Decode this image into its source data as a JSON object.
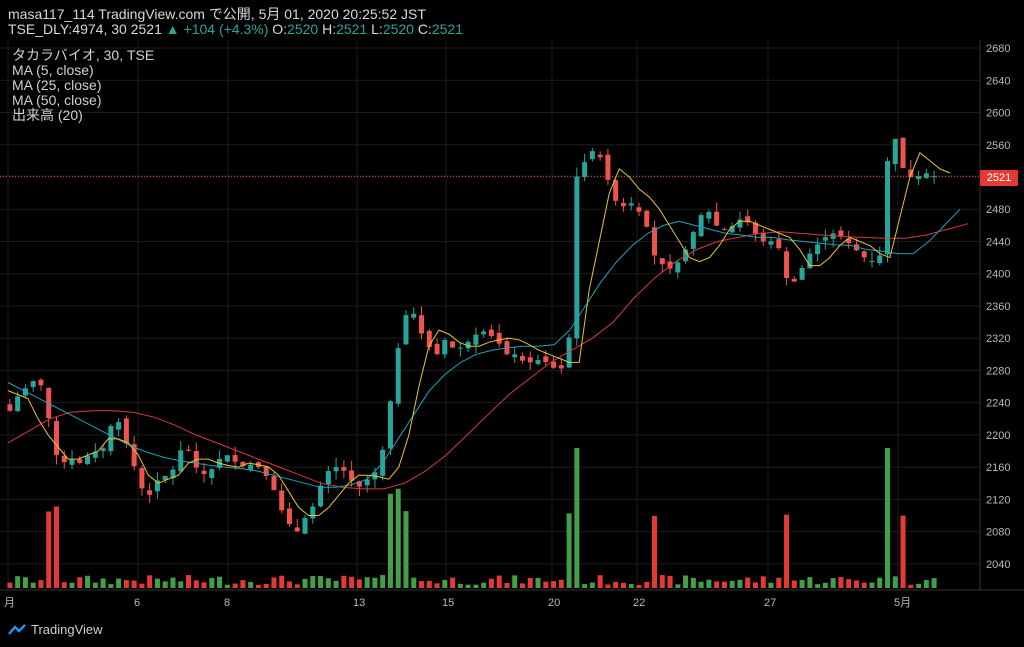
{
  "header": {
    "line1": "masa117_114 TradingView.com で公開, 5月 01, 2020 20:25:52 JST",
    "symbol": "TSE_DLY:4974, 30",
    "last": "2521",
    "change": "+104 (+4.3%)",
    "o_label": "O:",
    "o": "2520",
    "h_label": "H:",
    "h": "2521",
    "l_label": "L:",
    "l": "2520",
    "c_label": "C:",
    "c": "2521"
  },
  "indicators": [
    "タカラバイオ, 30, TSE",
    "MA (5, close)",
    "MA (25, close)",
    "MA (50, close)",
    "出来高 (20)"
  ],
  "price_tag": "2521",
  "brand": "TradingView",
  "colors": {
    "up": "#26a69a",
    "down": "#ef5350",
    "ma5": "#e6c630",
    "ma25": "#1fa2bd",
    "ma50": "#d93a3a",
    "vol_up": "#43a047",
    "vol_down": "#e53935"
  },
  "chart_data": {
    "type": "candlestick",
    "y_ticks": [
      2040,
      2080,
      2120,
      2160,
      2200,
      2240,
      2280,
      2320,
      2360,
      2400,
      2440,
      2480,
      2520,
      2560,
      2600,
      2640,
      2680
    ],
    "ylim": [
      2010,
      2690
    ],
    "x_ticks": [
      "月",
      "6",
      "8",
      "13",
      "15",
      "20",
      "22",
      "27",
      "5月"
    ],
    "last_price": 2521,
    "candle_count": 120,
    "close_path": [
      2230,
      2250,
      2260,
      2270,
      2255,
      2180,
      2165,
      2170,
      2165,
      2175,
      2180,
      2185,
      2230,
      2200,
      2170,
      2135,
      2125,
      2145,
      2150,
      2160,
      2195,
      2165,
      2150,
      2155,
      2170,
      2175,
      2165,
      2160,
      2165,
      2155,
      2140,
      2110,
      2090,
      2080,
      2100,
      2115,
      2150,
      2160,
      2160,
      2145,
      2135,
      2145,
      2155,
      2190,
      2270,
      2340,
      2360,
      2330,
      2310,
      2300,
      2320,
      2305,
      2310,
      2320,
      2330,
      2325,
      2315,
      2300,
      2300,
      2290,
      2290,
      2295,
      2285,
      2280,
      2290,
      2520,
      2540,
      2555,
      2540,
      2500,
      2480,
      2490,
      2480,
      2460,
      2420,
      2410,
      2405,
      2420,
      2440,
      2470,
      2480,
      2460,
      2455,
      2460,
      2470,
      2460,
      2440,
      2440,
      2440,
      2395,
      2390,
      2410,
      2430,
      2440,
      2450,
      2450,
      2440,
      2430,
      2420,
      2415,
      2425,
      2600,
      2540,
      2520,
      2520,
      2525,
      2521
    ],
    "ma5_path": [
      2255,
      2250,
      2245,
      2220,
      2200,
      2185,
      2170,
      2170,
      2175,
      2180,
      2195,
      2195,
      2190,
      2175,
      2150,
      2140,
      2145,
      2150,
      2165,
      2170,
      2170,
      2165,
      2162,
      2160,
      2165,
      2163,
      2160,
      2150,
      2130,
      2110,
      2100,
      2100,
      2110,
      2125,
      2140,
      2150,
      2150,
      2148,
      2145,
      2160,
      2200,
      2260,
      2310,
      2330,
      2325,
      2315,
      2310,
      2310,
      2315,
      2318,
      2320,
      2318,
      2312,
      2305,
      2300,
      2295,
      2290,
      2290,
      2380,
      2440,
      2500,
      2530,
      2520,
      2505,
      2495,
      2480,
      2460,
      2440,
      2420,
      2415,
      2420,
      2435,
      2455,
      2465,
      2465,
      2460,
      2455,
      2450,
      2445,
      2430,
      2410,
      2410,
      2420,
      2435,
      2445,
      2440,
      2435,
      2425,
      2420,
      2470,
      2520,
      2550,
      2540,
      2530,
      2525
    ],
    "ma25_path": [
      2265,
      2255,
      2245,
      2235,
      2225,
      2215,
      2205,
      2195,
      2185,
      2178,
      2172,
      2168,
      2165,
      2162,
      2160,
      2158,
      2155,
      2150,
      2145,
      2140,
      2135,
      2135,
      2138,
      2145,
      2165,
      2195,
      2225,
      2255,
      2275,
      2290,
      2300,
      2305,
      2308,
      2310,
      2310,
      2312,
      2330,
      2360,
      2390,
      2415,
      2435,
      2450,
      2460,
      2465,
      2460,
      2455,
      2450,
      2448,
      2445,
      2445,
      2442,
      2440,
      2438,
      2436,
      2435,
      2430,
      2428,
      2425,
      2425,
      2440,
      2460,
      2480
    ],
    "ma50_path": [
      2190,
      2205,
      2220,
      2228,
      2230,
      2230,
      2228,
      2222,
      2212,
      2200,
      2190,
      2180,
      2170,
      2160,
      2150,
      2140,
      2135,
      2133,
      2133,
      2140,
      2155,
      2175,
      2200,
      2225,
      2250,
      2270,
      2290,
      2305,
      2320,
      2340,
      2370,
      2395,
      2415,
      2430,
      2440,
      2445,
      2450,
      2452,
      2450,
      2448,
      2446,
      2445,
      2444,
      2444,
      2448,
      2455,
      2462
    ]
  }
}
